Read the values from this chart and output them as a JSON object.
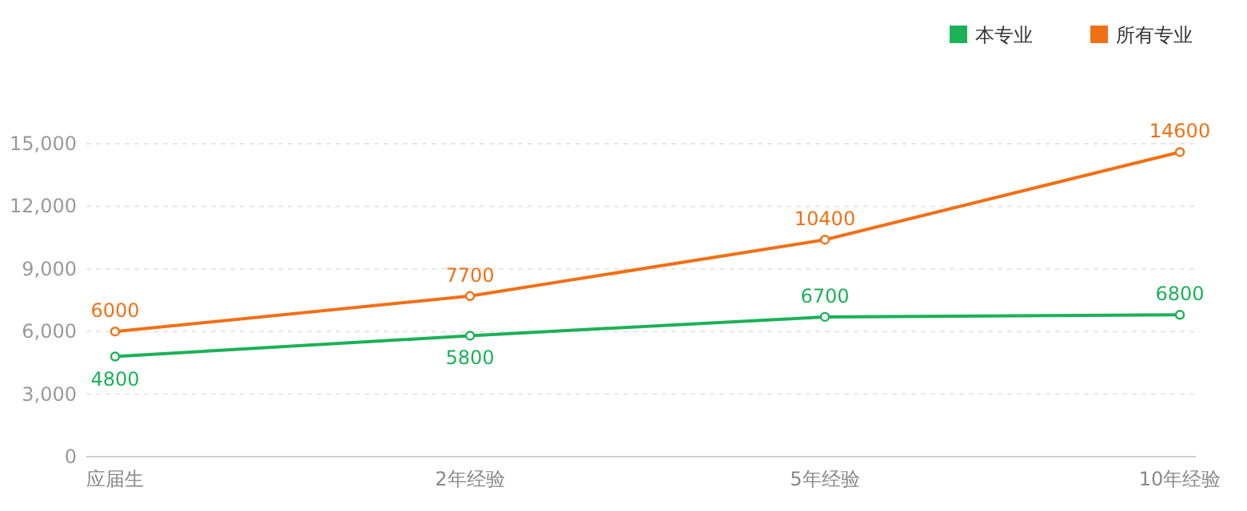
{
  "chart_data": {
    "type": "line",
    "categories": [
      "应届生",
      "2年经验",
      "5年经验",
      "10年经验"
    ],
    "series": [
      {
        "name": "本专业",
        "color": "#1bb157",
        "values": [
          4800,
          5800,
          6700,
          6800
        ]
      },
      {
        "name": "所有专业",
        "color": "#f07014",
        "values": [
          6000,
          7700,
          10400,
          14600
        ]
      }
    ],
    "ylim": [
      0,
      15000
    ],
    "yticks": [
      0,
      {
        "value": 3000,
        "label": "3,000"
      },
      {
        "value": 6000,
        "label": "6,000"
      },
      {
        "value": 9000,
        "label": "9,000"
      },
      {
        "value": 12000,
        "label": "12,000"
      },
      {
        "value": 15000,
        "label": "15,000"
      }
    ],
    "grid": "y",
    "legend": "top right",
    "data_labels": true,
    "marker": "circle",
    "line_style": "solid"
  }
}
